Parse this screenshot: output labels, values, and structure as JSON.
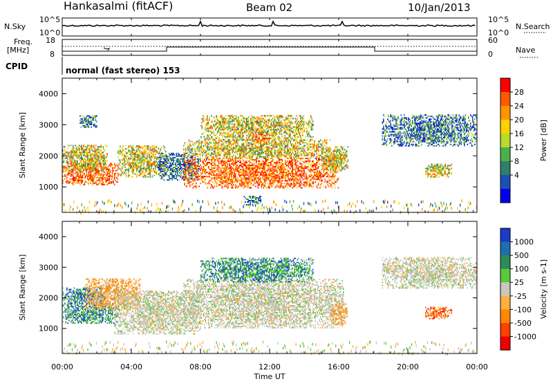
{
  "header": {
    "station": "Hankasalmi (fitACF)",
    "beam": "Beam 02",
    "date": "10/Jan/2013"
  },
  "top_panels": {
    "nsky_label": "N.Sky",
    "nsky_ticks": [
      "10^5",
      "10^0"
    ],
    "nsearch_label": "N.Search",
    "nsearch_ticks": [
      "10^5",
      "10^0"
    ],
    "freq_label_1": "Freq.",
    "freq_label_2": "[MHz]",
    "freq_ticks": [
      "18",
      "8"
    ],
    "nave_label": "Nave",
    "nave_ticks": [
      "60",
      "0"
    ],
    "cpid_label": "CPID",
    "cpid_value": "normal (fast stereo) 153"
  },
  "chart_data": [
    {
      "type": "heatmap",
      "name": "power",
      "ylabel": "Slant Range [km]",
      "ylim": [
        180,
        4500
      ],
      "yticks": [
        1000,
        2000,
        3000,
        4000
      ],
      "xlim_hours": [
        0,
        24
      ],
      "colorbar": {
        "label": "Power [dB]",
        "ticks": [
          "28",
          "24",
          "20",
          "16",
          "12",
          "8",
          "4"
        ],
        "colors": [
          "#0000ee",
          "#1c4fb4",
          "#2f7f6a",
          "#4cb04a",
          "#b8dc2a",
          "#ffd200",
          "#ff9600",
          "#ff5a00",
          "#ff0000"
        ]
      },
      "regions": [
        {
          "t0": 0.0,
          "t1": 3.2,
          "r0": 1050,
          "r1": 1750,
          "level": "high"
        },
        {
          "t0": 0.0,
          "t1": 2.6,
          "r0": 1500,
          "r1": 2350,
          "level": "mid"
        },
        {
          "t0": 3.2,
          "t1": 6.0,
          "r0": 1300,
          "r1": 2300,
          "level": "mid"
        },
        {
          "t0": 1.0,
          "t1": 2.0,
          "r0": 2900,
          "r1": 3300,
          "level": "low"
        },
        {
          "t0": 5.5,
          "t1": 8.0,
          "r0": 1200,
          "r1": 2100,
          "level": "low"
        },
        {
          "t0": 7.0,
          "t1": 16.0,
          "r0": 950,
          "r1": 1900,
          "level": "high"
        },
        {
          "t0": 7.0,
          "t1": 15.5,
          "r0": 1900,
          "r1": 2500,
          "level": "mid"
        },
        {
          "t0": 8.0,
          "t1": 14.5,
          "r0": 2500,
          "r1": 3300,
          "level": "mid"
        },
        {
          "t0": 11.0,
          "t1": 12.0,
          "r0": 2400,
          "r1": 2700,
          "level": "high"
        },
        {
          "t0": 15.0,
          "t1": 16.5,
          "r0": 1500,
          "r1": 2300,
          "level": "mid"
        },
        {
          "t0": 18.5,
          "t1": 24.0,
          "r0": 2300,
          "r1": 3300,
          "level": "low"
        },
        {
          "t0": 21.0,
          "t1": 22.5,
          "r0": 1300,
          "r1": 1750,
          "level": "mid"
        },
        {
          "t0": 10.5,
          "t1": 11.5,
          "r0": 400,
          "r1": 700,
          "level": "low"
        }
      ]
    },
    {
      "type": "heatmap",
      "name": "velocity",
      "ylabel": "Slant Range [km]",
      "ylim": [
        180,
        4500
      ],
      "yticks": [
        1000,
        2000,
        3000,
        4000
      ],
      "xlim_hours": [
        0,
        24
      ],
      "xticks": [
        "00:00",
        "04:00",
        "08:00",
        "12:00",
        "16:00",
        "20:00",
        "00:00"
      ],
      "xlabel": "Time UT",
      "colorbar": {
        "label": "Velocity [m s-1]",
        "ticks": [
          "1000",
          "500",
          "100",
          "25",
          "-25",
          "-100",
          "-500",
          "-1000"
        ],
        "colors": [
          "#1a3cc8",
          "#1e6eb0",
          "#2e8b57",
          "#5cc83c",
          "#c8c8c0",
          "#ffb040",
          "#ff8800",
          "#ff4000",
          "#ee0000"
        ]
      },
      "regions": [
        {
          "t0": 0.0,
          "t1": 3.2,
          "r0": 1150,
          "r1": 1800,
          "level": "pos"
        },
        {
          "t0": 0.0,
          "t1": 2.5,
          "r0": 1800,
          "r1": 2300,
          "level": "pos_strong"
        },
        {
          "t0": 1.3,
          "t1": 4.5,
          "r0": 1600,
          "r1": 2600,
          "level": "neg"
        },
        {
          "t0": 3.0,
          "t1": 8.0,
          "r0": 800,
          "r1": 2200,
          "level": "zero"
        },
        {
          "t0": 7.0,
          "t1": 16.3,
          "r0": 1000,
          "r1": 2600,
          "level": "zero"
        },
        {
          "t0": 8.0,
          "t1": 14.5,
          "r0": 2500,
          "r1": 3300,
          "level": "pos"
        },
        {
          "t0": 15.5,
          "t1": 16.5,
          "r0": 1100,
          "r1": 1800,
          "level": "neg"
        },
        {
          "t0": 18.5,
          "t1": 24.0,
          "r0": 2300,
          "r1": 3300,
          "level": "zero"
        },
        {
          "t0": 21.0,
          "t1": 22.5,
          "r0": 1300,
          "r1": 1700,
          "level": "neg_strong"
        }
      ]
    }
  ]
}
